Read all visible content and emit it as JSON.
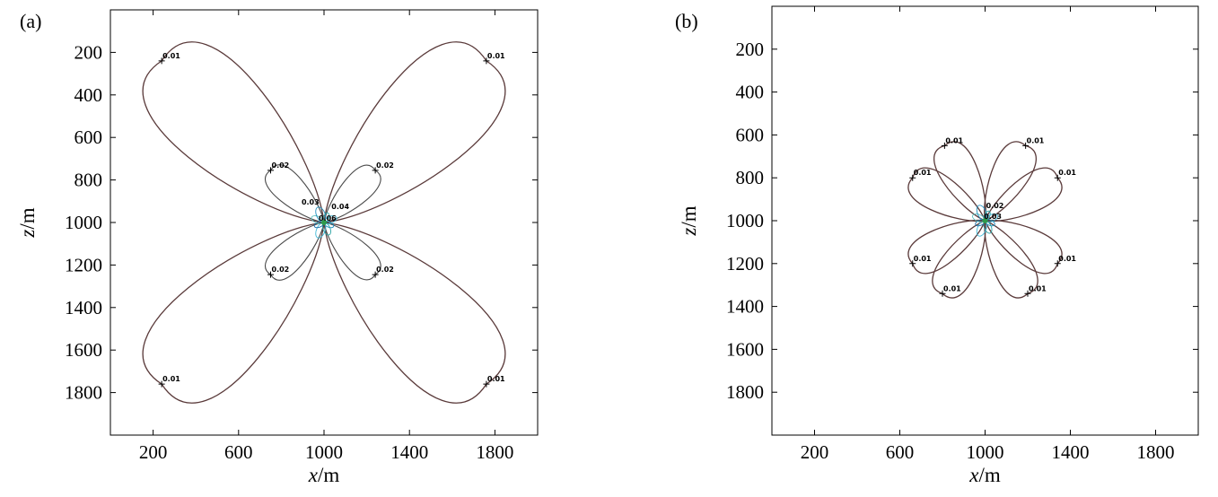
{
  "chart_data": [
    {
      "type": "contour",
      "panel_label": "(a)",
      "xlabel_var": "x",
      "xlabel_unit": "/m",
      "ylabel_var": "z",
      "ylabel_unit": "/m",
      "xlim": [
        0,
        2000
      ],
      "ylim": [
        0,
        2000
      ],
      "y_inverted": true,
      "xticks": [
        200,
        600,
        1000,
        1400,
        1800
      ],
      "yticks": [
        200,
        400,
        600,
        800,
        1000,
        1200,
        1400,
        1600,
        1800
      ],
      "center": [
        1000,
        1000
      ],
      "lobes": [
        {
          "kind": "outer",
          "tip": [
            240,
            240
          ],
          "label": "0.01"
        },
        {
          "kind": "outer",
          "tip": [
            1760,
            240
          ],
          "label": "0.01"
        },
        {
          "kind": "outer",
          "tip": [
            240,
            1760
          ],
          "label": "0.01"
        },
        {
          "kind": "outer",
          "tip": [
            1760,
            1760
          ],
          "label": "0.01"
        },
        {
          "kind": "inner",
          "tip": [
            750,
            755
          ],
          "label": "0.02"
        },
        {
          "kind": "inner",
          "tip": [
            1240,
            755
          ],
          "label": "0.02"
        },
        {
          "kind": "inner",
          "tip": [
            750,
            1245
          ],
          "label": "0.02"
        },
        {
          "kind": "inner",
          "tip": [
            1240,
            1245
          ],
          "label": "0.02"
        }
      ],
      "center_labels": [
        {
          "text": "0.03",
          "at": [
            920,
            925
          ]
        },
        {
          "text": "0.04",
          "at": [
            1060,
            945
          ]
        },
        {
          "text": "0.06",
          "at": [
            1000,
            1000
          ]
        }
      ]
    },
    {
      "type": "contour",
      "panel_label": "(b)",
      "xlabel_var": "x",
      "xlabel_unit": "/m",
      "ylabel_var": "z",
      "ylabel_unit": "/m",
      "xlim": [
        0,
        2000
      ],
      "ylim": [
        0,
        2000
      ],
      "y_inverted": true,
      "xticks": [
        200,
        600,
        1000,
        1400,
        1800
      ],
      "yticks": [
        200,
        400,
        600,
        800,
        1000,
        1200,
        1400,
        1600,
        1800
      ],
      "center": [
        1000,
        1000
      ],
      "lobes": [
        {
          "kind": "outer",
          "tip": [
            810,
            650
          ],
          "label": "0.01"
        },
        {
          "kind": "outer",
          "tip": [
            1190,
            650
          ],
          "label": "0.01"
        },
        {
          "kind": "outer",
          "tip": [
            660,
            800
          ],
          "label": "0.01"
        },
        {
          "kind": "outer",
          "tip": [
            1340,
            800
          ],
          "label": "0.01"
        },
        {
          "kind": "outer",
          "tip": [
            660,
            1200
          ],
          "label": "0.01"
        },
        {
          "kind": "outer",
          "tip": [
            1340,
            1200
          ],
          "label": "0.01"
        },
        {
          "kind": "outer",
          "tip": [
            800,
            1340
          ],
          "label": "0.01"
        },
        {
          "kind": "outer",
          "tip": [
            1200,
            1340
          ],
          "label": "0.01"
        }
      ],
      "center_labels": [
        {
          "text": "0.02",
          "at": [
            1030,
            950
          ]
        },
        {
          "text": "0.03",
          "at": [
            1020,
            1000
          ]
        }
      ]
    }
  ]
}
